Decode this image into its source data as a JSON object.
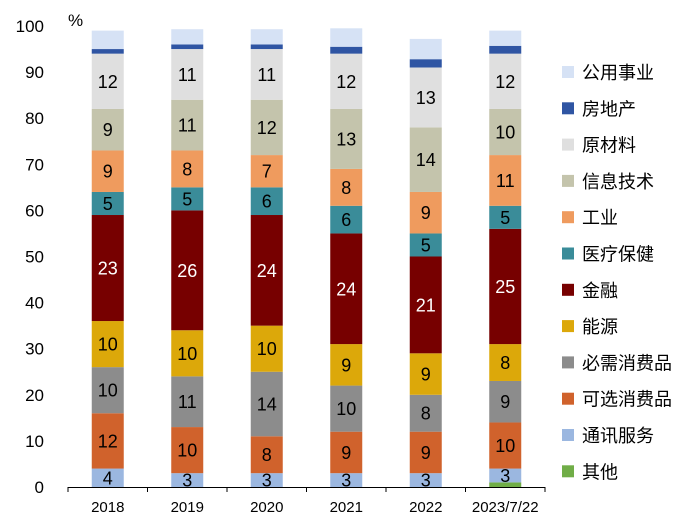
{
  "chart_data": {
    "type": "stacked-bar",
    "title": "",
    "ylabel": "%",
    "ylim": [
      0,
      100
    ],
    "yticks": [
      0,
      10,
      20,
      30,
      40,
      50,
      60,
      70,
      80,
      90,
      100
    ],
    "categories": [
      "2018",
      "2019",
      "2020",
      "2021",
      "2022",
      "2023/7/22"
    ],
    "legend_position": "right",
    "series": [
      {
        "name": "其他",
        "color": "#70ad47",
        "values": [
          0,
          0,
          0,
          0,
          0,
          1
        ],
        "labels": [
          "",
          "",
          "",
          "",
          "",
          ""
        ]
      },
      {
        "name": "通讯服务",
        "color": "#9bb7e0",
        "values": [
          4,
          3,
          3,
          3,
          3,
          3
        ],
        "labels": [
          "4",
          "3",
          "3",
          "3",
          "3",
          "3"
        ]
      },
      {
        "name": "可选消费品",
        "color": "#d0622c",
        "values": [
          12,
          10,
          8,
          9,
          9,
          10
        ],
        "labels": [
          "12",
          "10",
          "8",
          "9",
          "9",
          "10"
        ]
      },
      {
        "name": "必需消费品",
        "color": "#8c8c8c",
        "values": [
          10,
          11,
          14,
          10,
          8,
          9
        ],
        "labels": [
          "10",
          "11",
          "14",
          "10",
          "8",
          "9"
        ]
      },
      {
        "name": "能源",
        "color": "#dca80a",
        "values": [
          10,
          10,
          10,
          9,
          9,
          8
        ],
        "labels": [
          "10",
          "10",
          "10",
          "9",
          "9",
          "8"
        ]
      },
      {
        "name": "金融",
        "color": "#770000",
        "values": [
          23,
          26,
          24,
          24,
          21,
          25
        ],
        "labels": [
          "23",
          "26",
          "24",
          "24",
          "21",
          "25"
        ]
      },
      {
        "name": "医疗保健",
        "color": "#3a8c99",
        "values": [
          5,
          5,
          6,
          6,
          5,
          5
        ],
        "labels": [
          "5",
          "5",
          "6",
          "6",
          "5",
          "5"
        ]
      },
      {
        "name": "工业",
        "color": "#ef9b5e",
        "values": [
          9,
          8,
          7,
          8,
          9,
          11
        ],
        "labels": [
          "9",
          "8",
          "7",
          "8",
          "9",
          "11"
        ]
      },
      {
        "name": "信息技术",
        "color": "#c4c4ac",
        "values": [
          9,
          11,
          12,
          13,
          14,
          10
        ],
        "labels": [
          "9",
          "11",
          "12",
          "13",
          "14",
          "10"
        ]
      },
      {
        "name": "原材料",
        "color": "#dfdfdf",
        "values": [
          12,
          11,
          11,
          12,
          13,
          12
        ],
        "labels": [
          "12",
          "11",
          "11",
          "12",
          "13",
          "12"
        ]
      },
      {
        "name": "房地产",
        "color": "#2f55a3",
        "values": [
          1,
          1,
          1,
          1.5,
          1.8,
          1.7
        ],
        "labels": [
          "",
          "",
          "",
          "",
          "",
          ""
        ]
      },
      {
        "name": "公用事业",
        "color": "#d6e2f5",
        "values": [
          4,
          3.3,
          3.3,
          4,
          4.4,
          3.3
        ],
        "labels": [
          "",
          "",
          "",
          "",
          "",
          ""
        ]
      }
    ],
    "legend_order": [
      "公用事业",
      "房地产",
      "原材料",
      "信息技术",
      "工业",
      "医疗保健",
      "金融",
      "能源",
      "必需消费品",
      "可选消费品",
      "通讯服务",
      "其他"
    ]
  }
}
